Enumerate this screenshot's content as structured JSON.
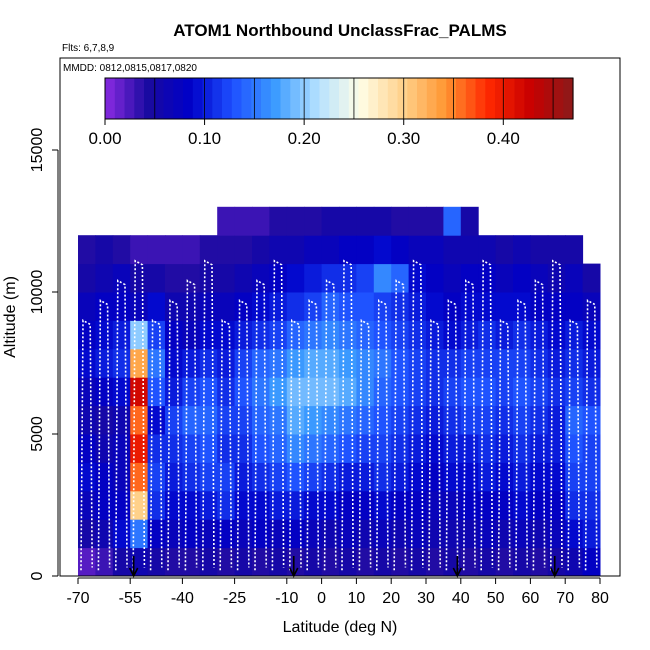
{
  "chart_data": {
    "type": "heatmap",
    "title": "ATOM1 Northbound UnclassFrac_PALMS",
    "flights_label": "Flts: 6,7,8,9",
    "dates_label": "MMDD: 0812,0815,0817,0820",
    "xlabel": "Latitude (deg N)",
    "ylabel": "Altitude (m)",
    "xlim": [
      -70,
      80
    ],
    "ylim": [
      0,
      17500
    ],
    "x_ticks": [
      -70,
      -55,
      -40,
      -25,
      -10,
      0,
      10,
      20,
      30,
      40,
      50,
      60,
      70,
      80
    ],
    "x_tick_labels": [
      "-70",
      "-55",
      "-40",
      "-25",
      "-10",
      "0",
      "10",
      "20",
      "30",
      "40",
      "50",
      "60",
      "70",
      "80"
    ],
    "y_ticks": [
      0,
      5000,
      10000,
      15000
    ],
    "y_tick_labels": [
      "0",
      "5000",
      "10000",
      "15000"
    ],
    "colorbar": {
      "range": [
        0,
        0.47
      ],
      "ticks": [
        0.0,
        0.1,
        0.2,
        0.3,
        0.4
      ],
      "tick_labels": [
        "0.00",
        "0.10",
        "0.20",
        "0.30",
        "0.40"
      ],
      "colors": [
        "#8a2be2",
        "#1a0aa0",
        "#0000c8",
        "#1e50ff",
        "#3c9bff",
        "#b4e1ff",
        "#fffde6",
        "#ffd28c",
        "#ff9632",
        "#ff2800",
        "#c80000",
        "#8b1a1a"
      ]
    },
    "latitude_bins": [
      -70,
      -65,
      -60,
      -55,
      -50,
      -45,
      -40,
      -35,
      -30,
      -25,
      -20,
      -15,
      -10,
      -5,
      0,
      5,
      10,
      15,
      20,
      25,
      30,
      35,
      40,
      45,
      50,
      55,
      60,
      65,
      70,
      75,
      80
    ],
    "altitude_bins": [
      0,
      1000,
      2000,
      3000,
      4000,
      5000,
      6000,
      7000,
      8000,
      9000,
      10000,
      11000,
      12000,
      13000
    ],
    "unclass_frac": [
      [
        0.02,
        0.05,
        0.07,
        0.09,
        0.08,
        0.06,
        0.07,
        0.09,
        0.08,
        0.07,
        0.05,
        0.04,
        null
      ],
      [
        0.03,
        0.06,
        0.08,
        0.08,
        0.06,
        0.05,
        0.08,
        0.1,
        0.09,
        0.08,
        0.06,
        0.05,
        null
      ],
      [
        0.05,
        0.09,
        0.08,
        0.07,
        0.07,
        0.06,
        0.09,
        0.11,
        0.1,
        0.08,
        0.07,
        0.04,
        null
      ],
      [
        0.06,
        0.15,
        0.3,
        0.36,
        0.4,
        0.36,
        0.42,
        0.33,
        0.2,
        0.07,
        0.05,
        0.03,
        null
      ],
      [
        0.05,
        0.08,
        0.11,
        0.12,
        0.11,
        0.09,
        0.13,
        0.15,
        0.12,
        0.09,
        0.05,
        0.03,
        null
      ],
      [
        0.04,
        0.07,
        0.09,
        0.1,
        0.11,
        0.12,
        0.1,
        0.09,
        0.08,
        0.06,
        0.04,
        0.03,
        null
      ],
      [
        0.04,
        0.08,
        0.09,
        0.11,
        0.12,
        0.14,
        0.12,
        0.1,
        0.07,
        0.06,
        0.04,
        0.03,
        null
      ],
      [
        0.05,
        0.07,
        0.1,
        0.12,
        0.13,
        0.14,
        0.13,
        0.11,
        0.09,
        0.07,
        0.05,
        0.04,
        null
      ],
      [
        0.04,
        0.08,
        0.11,
        0.12,
        0.11,
        0.12,
        0.11,
        0.1,
        0.09,
        0.07,
        0.05,
        0.04,
        0.03
      ],
      [
        0.05,
        0.07,
        0.09,
        0.1,
        0.11,
        0.12,
        0.13,
        0.12,
        0.1,
        0.08,
        0.06,
        0.04,
        0.03
      ],
      [
        0.04,
        0.08,
        0.09,
        0.11,
        0.13,
        0.14,
        0.15,
        0.14,
        0.11,
        0.09,
        0.07,
        0.05,
        0.03
      ],
      [
        0.05,
        0.07,
        0.1,
        0.12,
        0.14,
        0.15,
        0.17,
        0.15,
        0.12,
        0.1,
        0.08,
        0.06,
        0.04
      ],
      [
        0.04,
        0.08,
        0.1,
        0.13,
        0.16,
        0.18,
        0.19,
        0.17,
        0.14,
        0.11,
        0.09,
        0.06,
        0.04
      ],
      [
        0.05,
        0.07,
        0.09,
        0.12,
        0.15,
        0.17,
        0.19,
        0.18,
        0.15,
        0.12,
        0.1,
        0.07,
        0.04
      ],
      [
        0.04,
        0.06,
        0.09,
        0.11,
        0.14,
        0.16,
        0.19,
        0.18,
        0.16,
        0.14,
        0.11,
        0.07,
        0.05
      ],
      [
        0.05,
        0.07,
        0.08,
        0.1,
        0.13,
        0.15,
        0.18,
        0.17,
        0.15,
        0.13,
        0.11,
        0.08,
        0.05
      ],
      [
        0.04,
        0.06,
        0.08,
        0.1,
        0.12,
        0.14,
        0.16,
        0.16,
        0.14,
        0.13,
        0.12,
        0.08,
        0.05
      ],
      [
        0.05,
        0.07,
        0.09,
        0.11,
        0.12,
        0.13,
        0.14,
        0.15,
        0.13,
        0.12,
        0.16,
        0.09,
        0.05
      ],
      [
        0.04,
        0.06,
        0.08,
        0.1,
        0.11,
        0.12,
        0.13,
        0.13,
        0.12,
        0.11,
        0.14,
        0.08,
        0.04
      ],
      [
        0.05,
        0.07,
        0.08,
        0.09,
        0.1,
        0.11,
        0.12,
        0.12,
        0.11,
        0.1,
        0.09,
        0.07,
        0.04
      ],
      [
        0.04,
        0.06,
        0.07,
        0.08,
        0.09,
        0.1,
        0.11,
        0.11,
        0.1,
        0.09,
        0.08,
        0.07,
        0.04
      ],
      [
        0.05,
        0.06,
        0.07,
        0.09,
        0.1,
        0.11,
        0.12,
        0.11,
        0.09,
        0.08,
        0.07,
        0.06,
        0.14
      ],
      [
        0.04,
        0.06,
        0.08,
        0.09,
        0.1,
        0.12,
        0.13,
        0.12,
        0.1,
        0.09,
        0.08,
        0.06,
        0.05
      ],
      [
        0.05,
        0.07,
        0.08,
        0.1,
        0.11,
        0.12,
        0.13,
        0.12,
        0.11,
        0.09,
        0.08,
        0.06,
        null
      ],
      [
        0.04,
        0.06,
        0.08,
        0.09,
        0.1,
        0.11,
        0.12,
        0.12,
        0.1,
        0.09,
        0.07,
        0.05,
        null
      ],
      [
        0.05,
        0.07,
        0.09,
        0.1,
        0.11,
        0.12,
        0.13,
        0.12,
        0.11,
        0.09,
        0.08,
        0.06,
        null
      ],
      [
        0.04,
        0.06,
        0.08,
        0.09,
        0.1,
        0.11,
        0.12,
        0.11,
        0.1,
        0.08,
        0.07,
        0.05,
        null
      ],
      [
        0.05,
        0.07,
        0.08,
        0.09,
        0.1,
        0.1,
        0.11,
        0.1,
        0.09,
        0.08,
        0.06,
        0.05,
        null
      ],
      [
        0.06,
        0.09,
        0.11,
        0.12,
        0.13,
        0.14,
        0.12,
        0.11,
        0.1,
        0.08,
        0.07,
        0.05,
        null
      ],
      [
        0.08,
        0.1,
        0.11,
        0.12,
        0.12,
        0.13,
        0.11,
        0.1,
        0.09,
        0.07,
        0.05,
        null,
        null
      ]
    ],
    "arrow_latitudes": [
      -54,
      -8,
      39,
      67
    ]
  }
}
